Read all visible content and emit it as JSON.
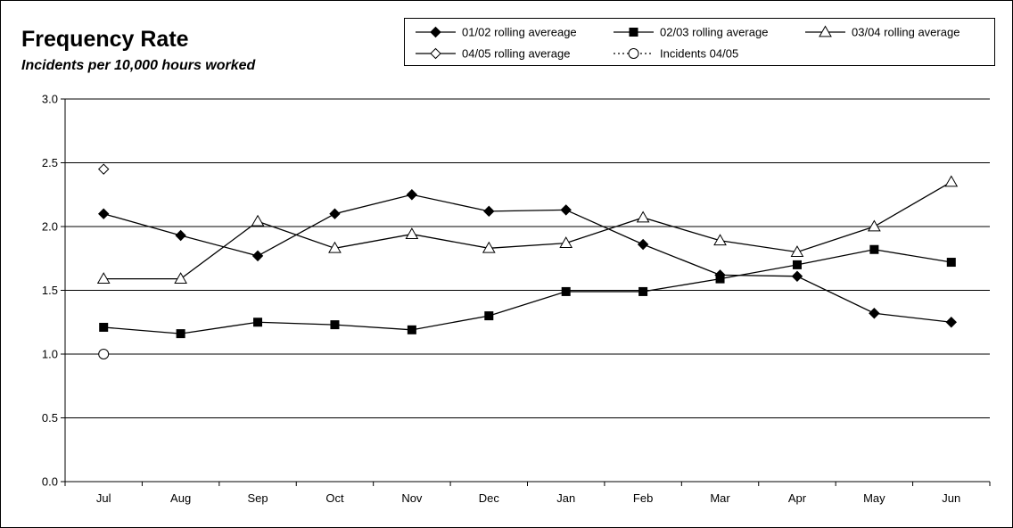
{
  "chart_data": {
    "type": "line",
    "title": "Frequency Rate",
    "subtitle": "Incidents per 10,000 hours worked",
    "categories": [
      "Jul",
      "Aug",
      "Sep",
      "Oct",
      "Nov",
      "Dec",
      "Jan",
      "Feb",
      "Mar",
      "Apr",
      "May",
      "Jun"
    ],
    "ylim": [
      0,
      3.0
    ],
    "yticks": [
      0,
      0.5,
      1.0,
      1.5,
      2.0,
      2.5,
      3.0
    ],
    "ytick_labels": [
      "0.0",
      "0.5",
      "1.0",
      "1.5",
      "2.0",
      "2.5",
      "3.0"
    ],
    "grid": "horizontal",
    "legend_position": "top-right",
    "series": [
      {
        "name": "01/02 rolling avereage",
        "marker": "diamond-filled",
        "line": "solid",
        "color": "#000000",
        "values": [
          2.1,
          1.93,
          1.77,
          2.1,
          2.25,
          2.12,
          2.13,
          1.86,
          1.62,
          1.61,
          1.32,
          1.25
        ]
      },
      {
        "name": "02/03 rolling average",
        "marker": "square-filled",
        "line": "solid",
        "color": "#000000",
        "values": [
          1.21,
          1.16,
          1.25,
          1.23,
          1.19,
          1.3,
          1.49,
          1.49,
          1.59,
          1.7,
          1.82,
          1.72
        ]
      },
      {
        "name": "03/04 rolling average",
        "marker": "triangle-open",
        "line": "solid",
        "color": "#000000",
        "values": [
          1.59,
          1.59,
          2.04,
          1.83,
          1.94,
          1.83,
          1.87,
          2.07,
          1.89,
          1.8,
          2.0,
          2.35
        ]
      },
      {
        "name": "04/05 rolling average",
        "marker": "diamond-open",
        "line": "solid",
        "color": "#000000",
        "values": [
          2.45,
          null,
          null,
          null,
          null,
          null,
          null,
          null,
          null,
          null,
          null,
          null
        ]
      },
      {
        "name": "Incidents 04/05",
        "marker": "circle-open",
        "line": "dotted",
        "color": "#000000",
        "values": [
          1.0,
          null,
          null,
          null,
          null,
          null,
          null,
          null,
          null,
          null,
          null,
          null
        ]
      }
    ]
  }
}
